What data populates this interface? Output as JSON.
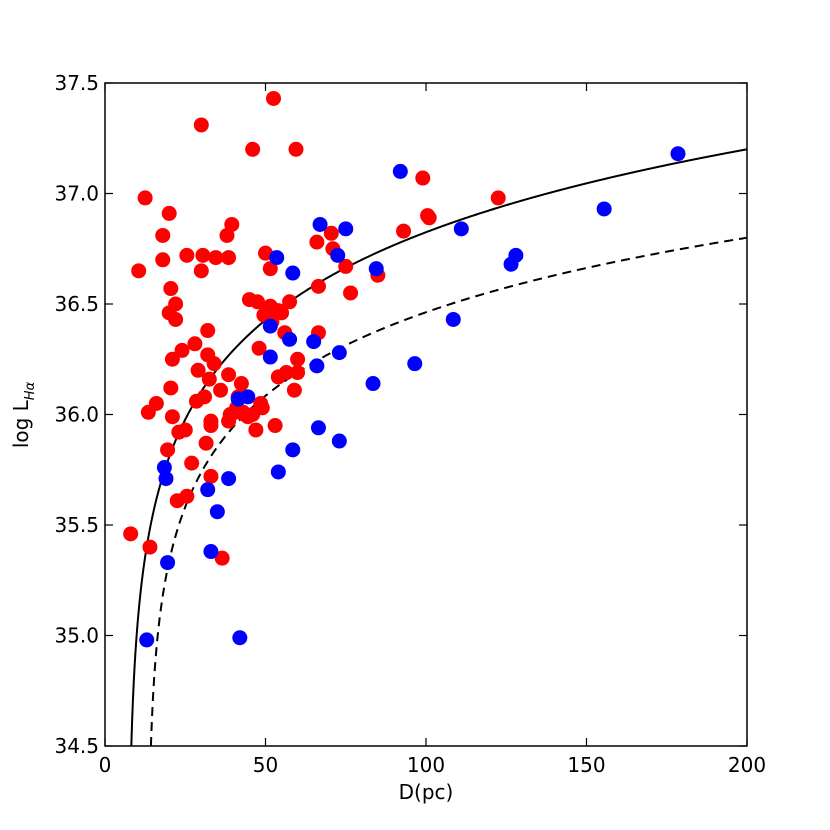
{
  "chart_data": {
    "type": "scatter",
    "title": "",
    "xlabel": "D(pc)",
    "ylabel": {
      "main": "log L",
      "subscript": "Hα"
    },
    "xlim": [
      0,
      200
    ],
    "ylim": [
      34.5,
      37.5
    ],
    "xticks": [
      0,
      50,
      100,
      150,
      200
    ],
    "yticks": [
      34.5,
      35.0,
      35.5,
      36.0,
      36.5,
      37.0,
      37.5
    ],
    "xtick_labels": [
      "0",
      "50",
      "100",
      "150",
      "200"
    ],
    "ytick_labels": [
      "34.5",
      "35.0",
      "35.5",
      "36.0",
      "36.5",
      "37.0",
      "37.5"
    ],
    "grid": false,
    "legend": "none",
    "series": [
      {
        "color": "#ff0000",
        "points": [
          [
            8,
            35.46
          ],
          [
            10.5,
            36.65
          ],
          [
            12.5,
            36.98
          ],
          [
            13.5,
            36.01
          ],
          [
            14,
            35.4
          ],
          [
            16,
            36.05
          ],
          [
            18,
            36.81
          ],
          [
            18,
            36.7
          ],
          [
            19.5,
            35.84
          ],
          [
            20,
            36.91
          ],
          [
            20,
            36.46
          ],
          [
            20.5,
            36.57
          ],
          [
            20.5,
            36.12
          ],
          [
            21,
            35.99
          ],
          [
            21,
            36.25
          ],
          [
            22,
            36.5
          ],
          [
            22,
            36.43
          ],
          [
            22.5,
            35.61
          ],
          [
            23,
            35.92
          ],
          [
            24,
            36.29
          ],
          [
            25,
            35.93
          ],
          [
            25.5,
            35.63
          ],
          [
            25.5,
            36.72
          ],
          [
            27,
            35.78
          ],
          [
            28,
            36.32
          ],
          [
            28.5,
            36.06
          ],
          [
            29,
            36.2
          ],
          [
            30,
            37.31
          ],
          [
            30,
            36.65
          ],
          [
            30.5,
            36.72
          ],
          [
            31,
            36.08
          ],
          [
            31.5,
            35.87
          ],
          [
            32,
            36.27
          ],
          [
            32,
            36.38
          ],
          [
            32.5,
            36.16
          ],
          [
            33,
            35.72
          ],
          [
            33,
            35.95
          ],
          [
            33,
            35.97
          ],
          [
            34,
            36.23
          ],
          [
            34.5,
            36.71
          ],
          [
            36,
            36.11
          ],
          [
            36.5,
            35.35
          ],
          [
            38,
            36.81
          ],
          [
            38.5,
            36.71
          ],
          [
            38.5,
            36.18
          ],
          [
            38.5,
            35.97
          ],
          [
            39,
            36.0
          ],
          [
            39.5,
            36.86
          ],
          [
            40.5,
            36.01
          ],
          [
            41,
            36.03
          ],
          [
            41.5,
            36.08
          ],
          [
            42.5,
            36.14
          ],
          [
            43,
            36.01
          ],
          [
            43.5,
            36.0
          ],
          [
            44.5,
            35.99
          ],
          [
            45,
            36.52
          ],
          [
            46,
            37.2
          ],
          [
            46,
            36.0
          ],
          [
            47,
            35.93
          ],
          [
            47.5,
            36.51
          ],
          [
            48,
            36.3
          ],
          [
            48.5,
            36.05
          ],
          [
            49,
            36.03
          ],
          [
            49.5,
            36.45
          ],
          [
            50,
            36.73
          ],
          [
            50.5,
            36.46
          ],
          [
            51.5,
            36.66
          ],
          [
            51.5,
            36.49
          ],
          [
            52,
            36.42
          ],
          [
            52.5,
            37.43
          ],
          [
            53,
            35.95
          ],
          [
            54,
            36.17
          ],
          [
            54,
            36.47
          ],
          [
            55,
            36.46
          ],
          [
            56,
            36.37
          ],
          [
            56.5,
            36.19
          ],
          [
            57.5,
            36.51
          ],
          [
            59,
            36.11
          ],
          [
            59.5,
            37.2
          ],
          [
            60,
            36.19
          ],
          [
            60,
            36.25
          ],
          [
            66,
            36.78
          ],
          [
            66.5,
            36.37
          ],
          [
            66.5,
            36.58
          ],
          [
            70.5,
            36.82
          ],
          [
            71,
            36.75
          ],
          [
            75,
            36.67
          ],
          [
            76.5,
            36.55
          ],
          [
            85,
            36.63
          ],
          [
            93,
            36.83
          ],
          [
            99,
            37.07
          ],
          [
            100.5,
            36.9
          ],
          [
            101,
            36.89
          ],
          [
            122.5,
            36.98
          ]
        ]
      },
      {
        "color": "#0000ff",
        "points": [
          [
            13,
            34.98
          ],
          [
            18.5,
            35.76
          ],
          [
            19,
            35.71
          ],
          [
            19.5,
            35.33
          ],
          [
            32,
            35.66
          ],
          [
            33,
            35.38
          ],
          [
            35,
            35.56
          ],
          [
            38.5,
            35.71
          ],
          [
            41.5,
            36.07
          ],
          [
            42,
            34.99
          ],
          [
            44.5,
            36.08
          ],
          [
            51.5,
            36.4
          ],
          [
            51.5,
            36.26
          ],
          [
            53.5,
            36.71
          ],
          [
            54,
            35.74
          ],
          [
            57.5,
            36.34
          ],
          [
            58.5,
            36.64
          ],
          [
            58.5,
            35.84
          ],
          [
            65,
            36.33
          ],
          [
            66,
            36.22
          ],
          [
            66.5,
            35.94
          ],
          [
            67,
            36.86
          ],
          [
            72.5,
            36.72
          ],
          [
            73,
            36.28
          ],
          [
            73,
            35.88
          ],
          [
            75,
            36.84
          ],
          [
            83.5,
            36.14
          ],
          [
            84.5,
            36.66
          ],
          [
            92,
            37.1
          ],
          [
            96.5,
            36.23
          ],
          [
            108.5,
            36.43
          ],
          [
            111,
            36.84
          ],
          [
            126.5,
            36.68
          ],
          [
            128,
            36.72
          ],
          [
            155.5,
            36.93
          ],
          [
            178.5,
            37.18
          ]
        ]
      }
    ],
    "curves": [
      {
        "style": "solid",
        "color": "#000000",
        "description_free": true,
        "a": 34.5,
        "shift": 8.2,
        "b": 8.45
      },
      {
        "style": "dashed",
        "color": "#000000",
        "description_free": true,
        "a": 34.5,
        "shift": 14.3,
        "b": 8.45
      }
    ]
  }
}
